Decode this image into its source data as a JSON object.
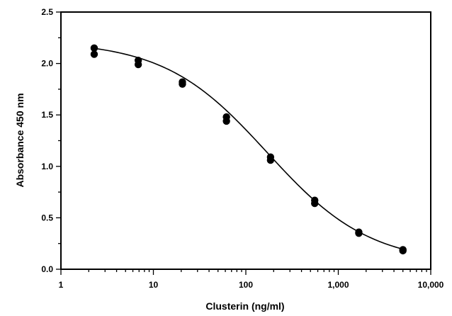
{
  "chart_data": {
    "type": "scatter",
    "title": "",
    "xlabel": "Clusterin (ng/ml)",
    "ylabel": "Absorbance 450 nm",
    "xscale": "log",
    "xlim": [
      1,
      10000
    ],
    "ylim": [
      0,
      2.5
    ],
    "grid": false,
    "x_ticks": [
      {
        "value": 1,
        "label": "1"
      },
      {
        "value": 10,
        "label": "10"
      },
      {
        "value": 100,
        "label": "100"
      },
      {
        "value": 1000,
        "label": "1,000"
      },
      {
        "value": 10000,
        "label": "10,000"
      }
    ],
    "y_ticks": [
      {
        "value": 0,
        "label": "0.0"
      },
      {
        "value": 0.5,
        "label": "0.5"
      },
      {
        "value": 1.0,
        "label": "1.0"
      },
      {
        "value": 1.5,
        "label": "1.5"
      },
      {
        "value": 2.0,
        "label": "2.0"
      },
      {
        "value": 2.5,
        "label": "2.5"
      }
    ],
    "series": [
      {
        "points": [
          {
            "x": 2.29,
            "y": 2.15
          },
          {
            "x": 2.29,
            "y": 2.09
          },
          {
            "x": 6.86,
            "y": 2.03
          },
          {
            "x": 6.86,
            "y": 1.99
          },
          {
            "x": 20.6,
            "y": 1.82
          },
          {
            "x": 20.6,
            "y": 1.8
          },
          {
            "x": 61.7,
            "y": 1.48
          },
          {
            "x": 61.7,
            "y": 1.44
          },
          {
            "x": 185,
            "y": 1.09
          },
          {
            "x": 185,
            "y": 1.06
          },
          {
            "x": 556,
            "y": 0.67
          },
          {
            "x": 556,
            "y": 0.64
          },
          {
            "x": 1667,
            "y": 0.36
          },
          {
            "x": 1667,
            "y": 0.35
          },
          {
            "x": 5000,
            "y": 0.19
          },
          {
            "x": 5000,
            "y": 0.18
          }
        ]
      }
    ],
    "fit_curve": {
      "type": "4PL",
      "top": 2.22,
      "bottom": 0.05,
      "ec50": 170,
      "hill": 0.78,
      "x_range": [
        2.29,
        5000
      ]
    }
  }
}
